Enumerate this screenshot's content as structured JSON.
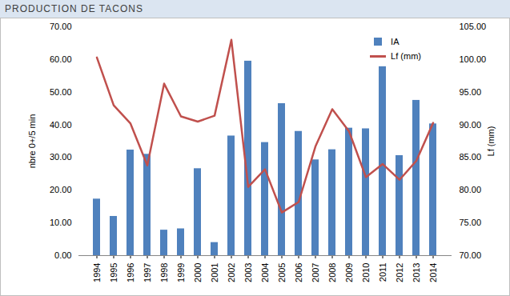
{
  "chart_data": {
    "type": "bar",
    "title": "PRODUCTION DE TACONS",
    "ylabel": "nbre 0+/5 min",
    "y2label": "Lf (mm)",
    "categories": [
      "1994",
      "1995",
      "1996",
      "1997",
      "1998",
      "1999",
      "2000",
      "2001",
      "2002",
      "2003",
      "2004",
      "2005",
      "2006",
      "2007",
      "2008",
      "2009",
      "2010",
      "2011",
      "2012",
      "2013",
      "2014"
    ],
    "series": [
      {
        "name": "IA",
        "type": "bar",
        "color": "#4f81bd",
        "values": [
          17.3,
          12.0,
          32.3,
          31.0,
          7.8,
          8.2,
          26.6,
          4.0,
          36.6,
          59.5,
          34.6,
          46.5,
          38.0,
          29.3,
          32.4,
          39.0,
          38.8,
          57.8,
          30.6,
          47.5,
          40.3
        ]
      },
      {
        "name": "Lf (mm)",
        "type": "line",
        "color": "#c0504d",
        "axis": "y2",
        "values": [
          100.3,
          93.0,
          90.2,
          83.8,
          96.3,
          91.3,
          90.5,
          91.4,
          103.0,
          80.5,
          83.2,
          76.6,
          78.2,
          86.7,
          92.4,
          89.0,
          82.0,
          84.0,
          81.6,
          84.5,
          90.3
        ]
      }
    ],
    "ylim": [
      0,
      70
    ],
    "yticks": [
      {
        "value": 0,
        "label": "0.00"
      },
      {
        "value": 10,
        "label": "10.00"
      },
      {
        "value": 20,
        "label": "20.00"
      },
      {
        "value": 30,
        "label": "30.00"
      },
      {
        "value": 40,
        "label": "40.00"
      },
      {
        "value": 50,
        "label": "50.00"
      },
      {
        "value": 60,
        "label": "60.00"
      },
      {
        "value": 70,
        "label": "70.00"
      }
    ],
    "y2lim": [
      70,
      105
    ],
    "y2ticks": [
      {
        "value": 70,
        "label": "70.00"
      },
      {
        "value": 75,
        "label": "75.00"
      },
      {
        "value": 80,
        "label": "80.00"
      },
      {
        "value": 85,
        "label": "85.00"
      },
      {
        "value": 90,
        "label": "90.00"
      },
      {
        "value": 95,
        "label": "95.00"
      },
      {
        "value": 100,
        "label": "100.00"
      },
      {
        "value": 105,
        "label": "105.00"
      }
    ],
    "legend": "top-right",
    "grid": false
  }
}
